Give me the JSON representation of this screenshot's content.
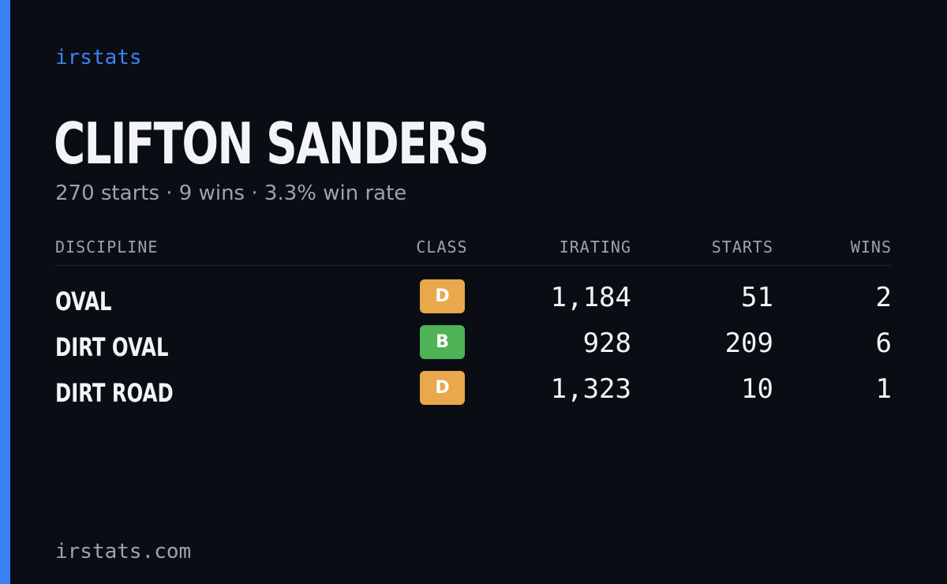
{
  "brand": "irstats",
  "driver": {
    "name": "CLIFTON SANDERS",
    "summary": "270 starts · 9 wins · 3.3% win rate"
  },
  "table": {
    "headers": {
      "discipline": "DISCIPLINE",
      "class": "CLASS",
      "irating": "IRATING",
      "starts": "STARTS",
      "wins": "WINS"
    },
    "rows": [
      {
        "discipline": "OVAL",
        "class": "D",
        "class_color": "#e8a84b",
        "irating": "1,184",
        "starts": "51",
        "wins": "2"
      },
      {
        "discipline": "DIRT OVAL",
        "class": "B",
        "class_color": "#4fb256",
        "irating": "928",
        "starts": "209",
        "wins": "6"
      },
      {
        "discipline": "DIRT ROAD",
        "class": "D",
        "class_color": "#e8a84b",
        "irating": "1,323",
        "starts": "10",
        "wins": "1"
      }
    ]
  },
  "footer": "irstats.com",
  "colors": {
    "accent": "#3b82f6",
    "background": "#0a0d14"
  }
}
